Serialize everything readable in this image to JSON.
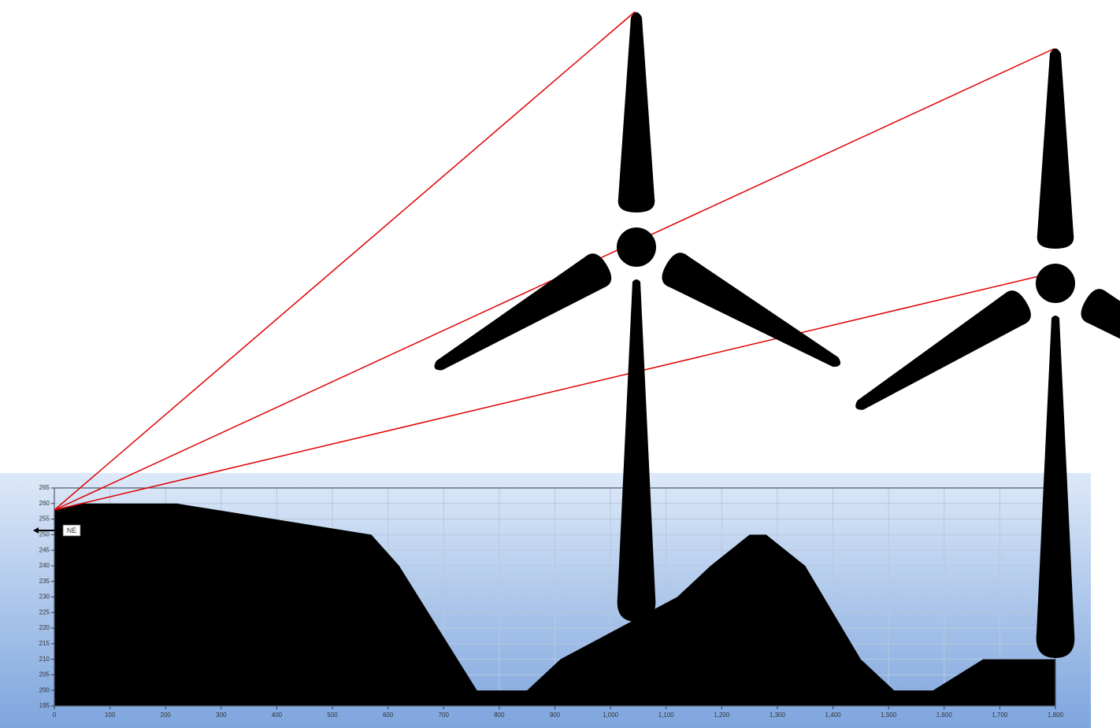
{
  "chart_data": {
    "type": "area",
    "x": [
      0,
      50,
      220,
      570,
      620,
      760,
      850,
      910,
      1120,
      1180,
      1250,
      1280,
      1350,
      1450,
      1510,
      1580,
      1670,
      1800
    ],
    "values": [
      258,
      260,
      260,
      250,
      240,
      200,
      200,
      210,
      230,
      240,
      250,
      250,
      240,
      210,
      200,
      200,
      210,
      210
    ],
    "color": "#000000",
    "xlim": [
      0,
      1800
    ],
    "xticks": [
      0,
      100,
      200,
      300,
      400,
      500,
      600,
      700,
      800,
      900,
      {
        "value": 1000,
        "label": "1,000"
      },
      {
        "value": 1100,
        "label": "1,100"
      },
      {
        "value": 1200,
        "label": "1,200"
      },
      {
        "value": 1300,
        "label": "1,300"
      },
      {
        "value": 1400,
        "label": "1,400"
      },
      {
        "value": 1500,
        "label": "1,500"
      },
      {
        "value": 1600,
        "label": "1,600"
      },
      {
        "value": 1700,
        "label": "1,700"
      },
      {
        "value": 1800,
        "label": "1,800"
      }
    ],
    "ylim": [
      195,
      265
    ],
    "yticks": [
      195,
      200,
      205,
      210,
      215,
      220,
      225,
      230,
      235,
      240,
      245,
      250,
      255,
      260,
      265
    ],
    "grid": true,
    "direction_label": "NE"
  }
}
